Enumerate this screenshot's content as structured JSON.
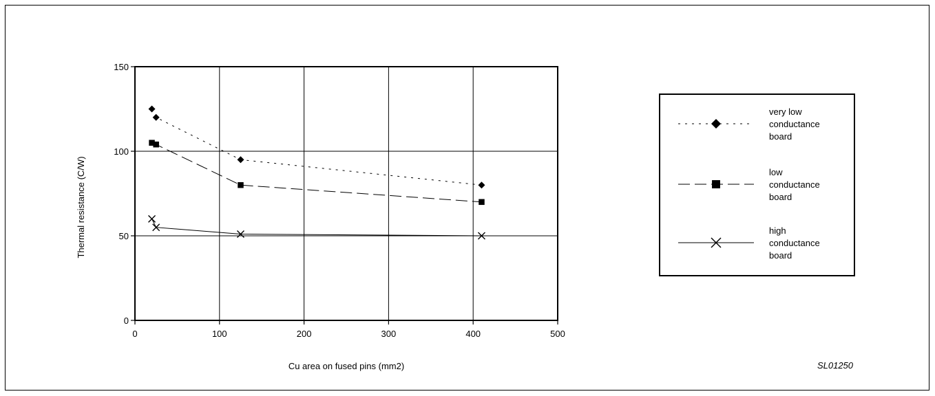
{
  "chart_data": {
    "type": "line",
    "xlabel": "Cu area on fused pins (mm2)",
    "ylabel": "Thermal resistance (C/W)",
    "xlim": [
      0,
      500
    ],
    "ylim": [
      0,
      150
    ],
    "x_ticks": [
      "0",
      "100",
      "200",
      "300",
      "400",
      "500"
    ],
    "y_ticks": [
      "0",
      "50",
      "100",
      "150"
    ],
    "grid": true,
    "legend_position": "right",
    "series": [
      {
        "name": "very low conductance board",
        "legend_lines": [
          "very low",
          "conductance",
          "board"
        ],
        "marker": "diamond",
        "line_style": "dotted",
        "x": [
          20,
          25,
          125,
          410
        ],
        "y": [
          125,
          120,
          95,
          80
        ]
      },
      {
        "name": "low conductance board",
        "legend_lines": [
          "low",
          "conductance",
          "board"
        ],
        "marker": "square",
        "line_style": "dashed",
        "x": [
          20,
          25,
          125,
          410
        ],
        "y": [
          105,
          104,
          80,
          70
        ]
      },
      {
        "name": "high conductance board",
        "legend_lines": [
          "high",
          "conductance",
          "board"
        ],
        "marker": "cross",
        "line_style": "solid",
        "x": [
          20,
          25,
          125,
          410
        ],
        "y": [
          60,
          55,
          51,
          50
        ]
      }
    ]
  },
  "figure_code": "SL01250"
}
